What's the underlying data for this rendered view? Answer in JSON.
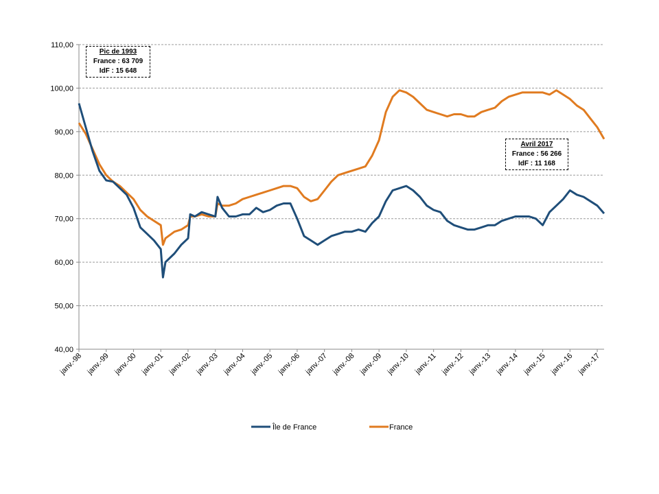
{
  "chart_data": {
    "type": "line",
    "title": "",
    "xlabel": "",
    "ylabel": "",
    "ylim": [
      40,
      110
    ],
    "yticks": [
      "40,00",
      "50,00",
      "60,00",
      "70,00",
      "80,00",
      "90,00",
      "100,00",
      "110,00"
    ],
    "ytick_values": [
      40,
      50,
      60,
      70,
      80,
      90,
      100,
      110
    ],
    "xticks": [
      "janv.-98",
      "janv.-99",
      "janv.-00",
      "janv.-01",
      "janv.-02",
      "janv.-03",
      "janv.-04",
      "janv.-05",
      "janv.-06",
      "janv.-07",
      "janv.-08",
      "janv.-09",
      "janv.-10",
      "janv.-11",
      "janv.-12",
      "janv.-13",
      "janv.-14",
      "janv.-15",
      "janv.-16",
      "janv.-17"
    ],
    "xtick_values": [
      1998,
      1999,
      2000,
      2001,
      2002,
      2003,
      2004,
      2005,
      2006,
      2007,
      2008,
      2009,
      2010,
      2011,
      2012,
      2013,
      2014,
      2015,
      2016,
      2017
    ],
    "xlim": [
      1998.0,
      2017.25
    ],
    "grid": "horizontal-dashed",
    "legend_position": "bottom",
    "series": [
      {
        "name": "Île de France",
        "color": "#1f4e79",
        "x": [
          1998.0,
          1998.25,
          1998.5,
          1998.75,
          1999.0,
          1999.25,
          1999.5,
          1999.75,
          2000.0,
          2000.25,
          2000.5,
          2000.75,
          2001.0,
          2001.08,
          2001.17,
          2001.5,
          2001.75,
          2002.0,
          2002.08,
          2002.25,
          2002.5,
          2002.75,
          2003.0,
          2003.08,
          2003.25,
          2003.5,
          2003.75,
          2004.0,
          2004.25,
          2004.5,
          2004.75,
          2005.0,
          2005.25,
          2005.5,
          2005.75,
          2006.0,
          2006.25,
          2006.5,
          2006.75,
          2007.0,
          2007.25,
          2007.5,
          2007.75,
          2008.0,
          2008.25,
          2008.5,
          2008.75,
          2009.0,
          2009.25,
          2009.5,
          2009.75,
          2010.0,
          2010.25,
          2010.5,
          2010.75,
          2011.0,
          2011.25,
          2011.5,
          2011.75,
          2012.0,
          2012.25,
          2012.5,
          2012.75,
          2013.0,
          2013.25,
          2013.5,
          2013.75,
          2014.0,
          2014.25,
          2014.5,
          2014.75,
          2015.0,
          2015.25,
          2015.5,
          2015.75,
          2016.0,
          2016.25,
          2016.5,
          2016.75,
          2017.0,
          2017.25
        ],
        "values": [
          96.5,
          91.0,
          85.5,
          81.0,
          78.8,
          78.5,
          77.0,
          75.5,
          72.5,
          68.0,
          66.5,
          65.0,
          63.0,
          56.5,
          60.0,
          62.0,
          64.0,
          65.5,
          71.0,
          70.5,
          71.5,
          71.0,
          70.5,
          75.0,
          72.5,
          70.5,
          70.5,
          71.0,
          71.0,
          72.5,
          71.5,
          72.0,
          73.0,
          73.5,
          73.5,
          70.0,
          66.0,
          65.0,
          64.0,
          65.0,
          66.0,
          66.5,
          67.0,
          67.0,
          67.5,
          67.0,
          69.0,
          70.5,
          74.0,
          76.5,
          77.0,
          77.5,
          76.5,
          75.0,
          73.0,
          72.0,
          71.5,
          69.5,
          68.5,
          68.0,
          67.5,
          67.5,
          68.0,
          68.5,
          68.5,
          69.5,
          70.0,
          70.5,
          70.5,
          70.5,
          70.0,
          68.5,
          71.5,
          73.0,
          74.5,
          76.5,
          75.5,
          75.0,
          74.0,
          73.0,
          71.2
        ]
      },
      {
        "name": "France",
        "color": "#e07b20",
        "x": [
          1998.0,
          1998.25,
          1998.5,
          1998.75,
          1999.0,
          1999.25,
          1999.5,
          1999.75,
          2000.0,
          2000.25,
          2000.5,
          2000.75,
          2001.0,
          2001.08,
          2001.17,
          2001.5,
          2001.75,
          2002.0,
          2002.08,
          2002.25,
          2002.5,
          2002.75,
          2003.0,
          2003.08,
          2003.25,
          2003.5,
          2003.75,
          2004.0,
          2004.25,
          2004.5,
          2004.75,
          2005.0,
          2005.25,
          2005.5,
          2005.75,
          2006.0,
          2006.25,
          2006.5,
          2006.75,
          2007.0,
          2007.25,
          2007.5,
          2007.75,
          2008.0,
          2008.25,
          2008.5,
          2008.75,
          2009.0,
          2009.25,
          2009.5,
          2009.75,
          2010.0,
          2010.25,
          2010.5,
          2010.75,
          2011.0,
          2011.25,
          2011.5,
          2011.75,
          2012.0,
          2012.25,
          2012.5,
          2012.75,
          2013.0,
          2013.25,
          2013.5,
          2013.75,
          2014.0,
          2014.25,
          2014.5,
          2014.75,
          2015.0,
          2015.25,
          2015.5,
          2015.75,
          2016.0,
          2016.25,
          2016.5,
          2016.75,
          2017.0,
          2017.25
        ],
        "values": [
          92.0,
          89.5,
          86.0,
          82.5,
          80.0,
          78.5,
          77.5,
          76.0,
          74.5,
          72.0,
          70.5,
          69.5,
          68.5,
          64.0,
          65.5,
          67.0,
          67.5,
          68.5,
          70.5,
          70.5,
          71.0,
          70.5,
          70.5,
          73.5,
          73.0,
          73.0,
          73.5,
          74.5,
          75.0,
          75.5,
          76.0,
          76.5,
          77.0,
          77.5,
          77.5,
          77.0,
          75.0,
          74.0,
          74.5,
          76.5,
          78.5,
          80.0,
          80.5,
          81.0,
          81.5,
          82.0,
          84.5,
          88.0,
          94.5,
          98.0,
          99.5,
          99.0,
          98.0,
          96.5,
          95.0,
          94.5,
          94.0,
          93.5,
          94.0,
          94.0,
          93.5,
          93.5,
          94.5,
          95.0,
          95.5,
          97.0,
          98.0,
          98.5,
          99.0,
          99.0,
          99.0,
          99.0,
          98.5,
          99.5,
          98.5,
          97.5,
          96.0,
          95.0,
          93.0,
          91.0,
          88.3
        ]
      }
    ],
    "annotations": [
      {
        "title": "Pic de 1993",
        "line1": "France : 63 709",
        "line2": "IdF : 15 648"
      },
      {
        "title": "Avril 2017",
        "line1": "France : 56 266",
        "line2": "IdF : 11 168"
      }
    ]
  }
}
